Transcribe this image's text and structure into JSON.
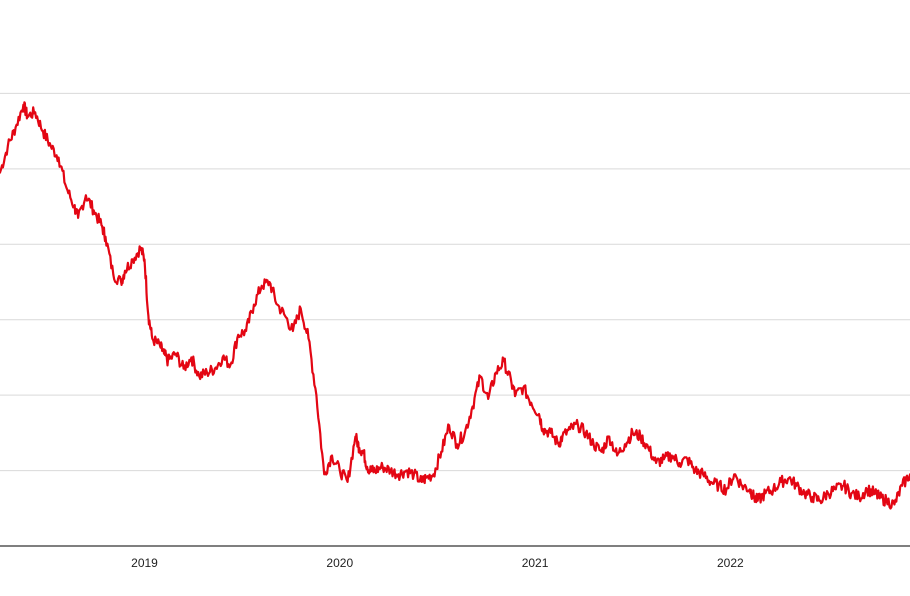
{
  "chart_data": {
    "type": "line",
    "title": "",
    "xlabel": "",
    "ylabel": "",
    "grid": true,
    "legend": "none",
    "x_ticks": [
      "2019",
      "2020",
      "2021",
      "2022"
    ],
    "x_tick_positions": [
      2019.0,
      2020.0,
      2021.0,
      2022.0
    ],
    "xlim": [
      2018.26,
      2022.92
    ],
    "ylim": [
      0,
      7
    ],
    "y_gridlines": [
      1,
      2,
      3,
      4,
      5,
      6
    ],
    "series": [
      {
        "color": "#e30613",
        "x": [
          2018.26,
          2018.3,
          2018.34,
          2018.38,
          2018.4,
          2018.44,
          2018.48,
          2018.52,
          2018.56,
          2018.6,
          2018.64,
          2018.66,
          2018.7,
          2018.74,
          2018.78,
          2018.8,
          2018.84,
          2018.88,
          2018.9,
          2018.94,
          2018.98,
          2019.0,
          2019.02,
          2019.04,
          2019.08,
          2019.1,
          2019.12,
          2019.16,
          2019.2,
          2019.24,
          2019.28,
          2019.32,
          2019.36,
          2019.4,
          2019.44,
          2019.48,
          2019.52,
          2019.56,
          2019.6,
          2019.64,
          2019.68,
          2019.72,
          2019.76,
          2019.8,
          2019.84,
          2019.88,
          2019.92,
          2019.96,
          2020.0,
          2020.04,
          2020.08,
          2020.1,
          2020.12,
          2020.14,
          2020.16,
          2020.18,
          2020.22,
          2020.26,
          2020.3,
          2020.34,
          2020.38,
          2020.42,
          2020.44,
          2020.48,
          2020.52,
          2020.56,
          2020.6,
          2020.64,
          2020.68,
          2020.72,
          2020.76,
          2020.8,
          2020.84,
          2020.88,
          2020.9,
          2020.94,
          2020.98,
          2021.02,
          2021.04,
          2021.08,
          2021.12,
          2021.14,
          2021.18,
          2021.22,
          2021.26,
          2021.3,
          2021.34,
          2021.38,
          2021.42,
          2021.46,
          2021.5,
          2021.54,
          2021.58,
          2021.62,
          2021.66,
          2021.7,
          2021.74,
          2021.78,
          2021.82,
          2021.86,
          2021.9,
          2021.94,
          2021.98,
          2022.02,
          2022.06,
          2022.1,
          2022.12,
          2022.14,
          2022.18,
          2022.22,
          2022.26,
          2022.3,
          2022.34,
          2022.38,
          2022.42,
          2022.46,
          2022.5,
          2022.54,
          2022.58,
          2022.62,
          2022.66,
          2022.7,
          2022.74,
          2022.76,
          2022.8,
          2022.84,
          2022.88,
          2022.92
        ],
        "y": [
          4.95,
          5.3,
          5.55,
          5.85,
          5.7,
          5.75,
          5.5,
          5.3,
          5.15,
          4.75,
          4.5,
          4.35,
          4.65,
          4.45,
          4.25,
          4.1,
          3.6,
          3.5,
          3.65,
          3.8,
          3.95,
          3.8,
          3.05,
          2.75,
          2.65,
          2.55,
          2.45,
          2.55,
          2.35,
          2.5,
          2.25,
          2.3,
          2.35,
          2.5,
          2.4,
          2.8,
          2.85,
          3.2,
          3.45,
          3.5,
          3.2,
          3.05,
          2.85,
          3.15,
          2.75,
          2.0,
          0.95,
          1.2,
          1.0,
          0.85,
          1.45,
          1.3,
          1.25,
          1.05,
          1.0,
          1.0,
          1.05,
          1.0,
          0.95,
          1.0,
          0.95,
          0.85,
          0.9,
          0.95,
          1.25,
          1.6,
          1.35,
          1.5,
          1.85,
          2.25,
          1.95,
          2.3,
          2.45,
          2.15,
          2.0,
          2.1,
          1.9,
          1.75,
          1.55,
          1.5,
          1.35,
          1.45,
          1.55,
          1.6,
          1.5,
          1.35,
          1.25,
          1.45,
          1.2,
          1.35,
          1.5,
          1.45,
          1.3,
          1.1,
          1.15,
          1.2,
          1.1,
          1.15,
          1.0,
          0.95,
          0.85,
          0.8,
          0.75,
          0.95,
          0.8,
          0.75,
          0.65,
          0.6,
          0.7,
          0.75,
          0.85,
          0.9,
          0.8,
          0.7,
          0.65,
          0.6,
          0.7,
          0.75,
          0.8,
          0.7,
          0.65,
          0.75,
          0.7,
          0.65,
          0.6,
          0.55,
          0.8,
          0.95
        ]
      }
    ]
  }
}
